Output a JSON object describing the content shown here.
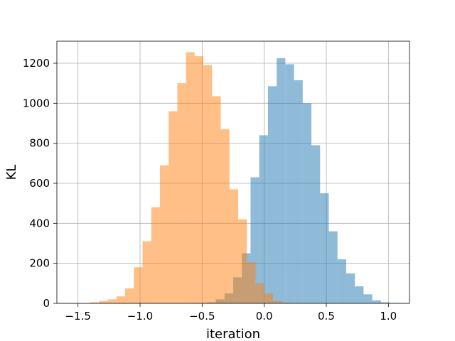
{
  "chart_data": {
    "type": "histogram",
    "title": "",
    "xlabel": "iteration",
    "ylabel": "KL",
    "xlim": [
      -1.67,
      1.17
    ],
    "ylim": [
      0,
      1310
    ],
    "grid": true,
    "legend": "none",
    "xticks": [
      -1.5,
      -1.0,
      -0.5,
      0.0,
      0.5,
      1.0
    ],
    "xtick_labels": [
      "−1.5",
      "−1.0",
      "−0.5",
      "0.0",
      "0.5",
      "1.0"
    ],
    "yticks": [
      0,
      200,
      400,
      600,
      800,
      1000,
      1200
    ],
    "ytick_labels": [
      "0",
      "200",
      "400",
      "600",
      "800",
      "1000",
      "1200"
    ],
    "series": [
      {
        "color": "#1f77b4",
        "opacity": 0.5,
        "bin_width": 0.07,
        "bin_starts": [
          -0.46,
          -0.39,
          -0.32,
          -0.25,
          -0.18,
          -0.11,
          -0.04,
          0.03,
          0.1,
          0.17,
          0.24,
          0.31,
          0.38,
          0.45,
          0.52,
          0.59,
          0.66,
          0.73,
          0.8,
          0.87,
          0.94,
          1.01
        ],
        "counts": [
          5,
          20,
          50,
          130,
          250,
          630,
          840,
          1085,
          1225,
          1195,
          1115,
          1000,
          790,
          550,
          360,
          220,
          150,
          85,
          45,
          15,
          5,
          2
        ]
      },
      {
        "color": "#ff7f0e",
        "opacity": 0.5,
        "bin_width": 0.07,
        "bin_starts": [
          -1.4,
          -1.33,
          -1.26,
          -1.19,
          -1.12,
          -1.05,
          -0.98,
          -0.91,
          -0.84,
          -0.77,
          -0.7,
          -0.63,
          -0.56,
          -0.49,
          -0.42,
          -0.35,
          -0.28,
          -0.21,
          -0.14,
          -0.07,
          0.0,
          0.07,
          0.14
        ],
        "counts": [
          5,
          12,
          20,
          35,
          75,
          180,
          310,
          480,
          690,
          960,
          1100,
          1255,
          1235,
          1190,
          1035,
          870,
          570,
          420,
          205,
          100,
          50,
          12,
          3
        ]
      }
    ]
  }
}
